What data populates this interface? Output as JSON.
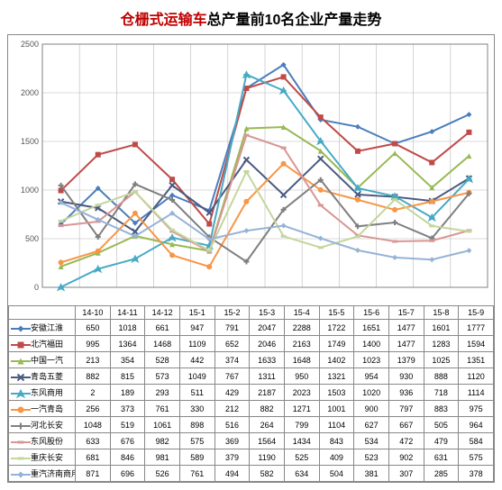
{
  "title_red": "仓栅式运输车",
  "title_black": "总产量前10名企业产量走势",
  "chart": {
    "type": "line",
    "ylim": [
      0,
      2500
    ],
    "ytick_step": 500,
    "categories": [
      "14-10",
      "14-11",
      "14-12",
      "15-1",
      "15-2",
      "15-3",
      "15-4",
      "15-5",
      "15-6",
      "15-7",
      "15-8",
      "15-9"
    ],
    "background_color": "#ffffff",
    "grid_color": "#b7b7b7",
    "axis_color": "#808080",
    "tick_fontsize": 9,
    "line_width": 2,
    "marker_size": 6,
    "font_family": "SimSun"
  },
  "series": [
    {
      "name": "安徽江淮",
      "color": "#4a7ebb",
      "marker": "diamond",
      "data": [
        650,
        1018,
        661,
        947,
        791,
        2047,
        2288,
        1722,
        1651,
        1477,
        1601,
        1777
      ]
    },
    {
      "name": "北汽福田",
      "color": "#be4b48",
      "marker": "square",
      "data": [
        995,
        1364,
        1468,
        1109,
        652,
        2046,
        2163,
        1749,
        1400,
        1477,
        1283,
        1594
      ]
    },
    {
      "name": "中国一汽",
      "color": "#98b954",
      "marker": "triangle",
      "data": [
        213,
        354,
        528,
        442,
        374,
        1633,
        1648,
        1402,
        1023,
        1379,
        1025,
        1351
      ]
    },
    {
      "name": "青岛五菱",
      "color": "#495a80",
      "marker": "x",
      "data": [
        882,
        815,
        573,
        1049,
        767,
        1311,
        950,
        1321,
        954,
        930,
        888,
        1120
      ]
    },
    {
      "name": "东风商用",
      "color": "#46aac5",
      "marker": "star",
      "data": [
        2,
        189,
        293,
        511,
        429,
        2187,
        2023,
        1503,
        1020,
        936,
        718,
        1114
      ]
    },
    {
      "name": "一汽青岛",
      "color": "#f79646",
      "marker": "circle",
      "data": [
        256,
        373,
        761,
        330,
        212,
        882,
        1271,
        1001,
        900,
        797,
        883,
        975
      ]
    },
    {
      "name": "河北长安",
      "color": "#7f7f7f",
      "marker": "plus",
      "data": [
        1048,
        519,
        1061,
        898,
        516,
        264,
        799,
        1104,
        627,
        667,
        505,
        964
      ]
    },
    {
      "name": "东风股份",
      "color": "#d99694",
      "marker": "dash",
      "data": [
        633,
        676,
        982,
        575,
        369,
        1564,
        1434,
        843,
        534,
        472,
        479,
        584
      ]
    },
    {
      "name": "重庆长安",
      "color": "#c3d69b",
      "marker": "dash",
      "data": [
        681,
        846,
        981,
        589,
        379,
        1190,
        525,
        409,
        523,
        902,
        631,
        575
      ]
    },
    {
      "name": "重汽济南商用",
      "color": "#95b3d7",
      "marker": "diamond",
      "data": [
        871,
        696,
        526,
        761,
        494,
        582,
        634,
        504,
        381,
        307,
        285,
        378
      ]
    }
  ]
}
